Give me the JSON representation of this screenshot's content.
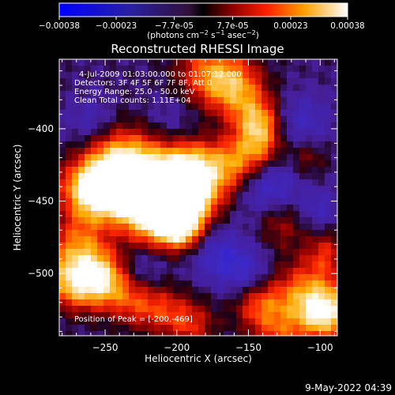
{
  "chart_data": {
    "type": "heatmap",
    "title": "Reconstructed RHESSI Image",
    "colorbar": {
      "ticks": [
        "-0.00038",
        "-0.00023",
        "-7.7e-05",
        "7.7e-05",
        "0.00023",
        "0.00038"
      ],
      "label_parts": [
        "(photons cm",
        "-2",
        " s",
        "-1",
        " asec",
        "-2",
        ")"
      ],
      "range": [
        -0.00038,
        0.00038
      ]
    },
    "xlabel": "Heliocentric X (arcsec)",
    "ylabel": "Heliocentric Y (arcsec)",
    "xlim": [
      -282,
      -88
    ],
    "ylim": [
      -543,
      -352
    ],
    "xticks": [
      -250,
      -200,
      -150,
      -100
    ],
    "xtick_labels": [
      "−250",
      "−200",
      "−150",
      "−100"
    ],
    "yticks": [
      -400,
      -450,
      -500
    ],
    "ytick_labels": [
      "−400",
      "−450",
      "−500"
    ],
    "annotations": [
      "4-Jul-2009 01:03:00.000 to 01:07:12.000",
      "Detectors: 3F 4F 5F 6F 7F 8F, Att 0",
      "Energy Range: 25.0 - 50.0 keV",
      "Clean     Total counts: 1.11E+04"
    ],
    "peak_label": "Position of Peak = [-200,-469]",
    "peak": [
      -200,
      -469
    ],
    "blobs": [
      {
        "x": -224,
        "y": -437,
        "r": 22,
        "v": 0.00038
      },
      {
        "x": -204,
        "y": -442,
        "r": 14,
        "v": 0.00034
      },
      {
        "x": -197,
        "y": -468,
        "r": 10,
        "v": 0.00036
      },
      {
        "x": -243,
        "y": -427,
        "r": 16,
        "v": 0.00026
      },
      {
        "x": -250,
        "y": -452,
        "r": 16,
        "v": 0.00024
      },
      {
        "x": -266,
        "y": -440,
        "r": 12,
        "v": 0.0002
      },
      {
        "x": -213,
        "y": -462,
        "r": 14,
        "v": 0.00026
      },
      {
        "x": -185,
        "y": -450,
        "r": 12,
        "v": 0.0002
      },
      {
        "x": -190,
        "y": -425,
        "r": 12,
        "v": 0.00022
      },
      {
        "x": -170,
        "y": -430,
        "r": 14,
        "v": 0.0002
      },
      {
        "x": -155,
        "y": -420,
        "r": 12,
        "v": 0.00017
      },
      {
        "x": -142,
        "y": -400,
        "r": 10,
        "v": 0.00015
      },
      {
        "x": -177,
        "y": -362,
        "r": 16,
        "v": 0.00024
      },
      {
        "x": -158,
        "y": -372,
        "r": 14,
        "v": 0.00022
      },
      {
        "x": -145,
        "y": -392,
        "r": 12,
        "v": 0.00018
      },
      {
        "x": -140,
        "y": -415,
        "r": 10,
        "v": 0.00015
      },
      {
        "x": -128,
        "y": -465,
        "r": 12,
        "v": 0.00014
      },
      {
        "x": -110,
        "y": -420,
        "r": 10,
        "v": 0.00012
      },
      {
        "x": -265,
        "y": -488,
        "r": 18,
        "v": 0.0003
      },
      {
        "x": -250,
        "y": -507,
        "r": 12,
        "v": 0.00024
      },
      {
        "x": -272,
        "y": -508,
        "r": 12,
        "v": 0.00022
      },
      {
        "x": -230,
        "y": -520,
        "r": 12,
        "v": 0.00016
      },
      {
        "x": -210,
        "y": -525,
        "r": 12,
        "v": 0.00015
      },
      {
        "x": -190,
        "y": -535,
        "r": 12,
        "v": 0.00017
      },
      {
        "x": -143,
        "y": -522,
        "r": 12,
        "v": 0.0002
      },
      {
        "x": -108,
        "y": -518,
        "r": 18,
        "v": 0.0003
      },
      {
        "x": -95,
        "y": -528,
        "r": 12,
        "v": 0.00024
      },
      {
        "x": -96,
        "y": -485,
        "r": 10,
        "v": 0.00014
      },
      {
        "x": -130,
        "y": -545,
        "r": 12,
        "v": 0.00014
      },
      {
        "x": -260,
        "y": -395,
        "r": 12,
        "v": -0.0001
      },
      {
        "x": -205,
        "y": -395,
        "r": 14,
        "v": -8e-05
      },
      {
        "x": -248,
        "y": -470,
        "r": 12,
        "v": -0.00014
      },
      {
        "x": -170,
        "y": -488,
        "r": 14,
        "v": -0.00014
      },
      {
        "x": -135,
        "y": -440,
        "r": 16,
        "v": -0.00016
      },
      {
        "x": -112,
        "y": -395,
        "r": 14,
        "v": -0.00012
      },
      {
        "x": -225,
        "y": -495,
        "r": 12,
        "v": -0.0001
      },
      {
        "x": -150,
        "y": -500,
        "r": 12,
        "v": -0.00012
      },
      {
        "x": -100,
        "y": -455,
        "r": 10,
        "v": -0.0001
      }
    ],
    "base_level": -4e-05
  },
  "timestamp": "9-May-2022 04:39"
}
